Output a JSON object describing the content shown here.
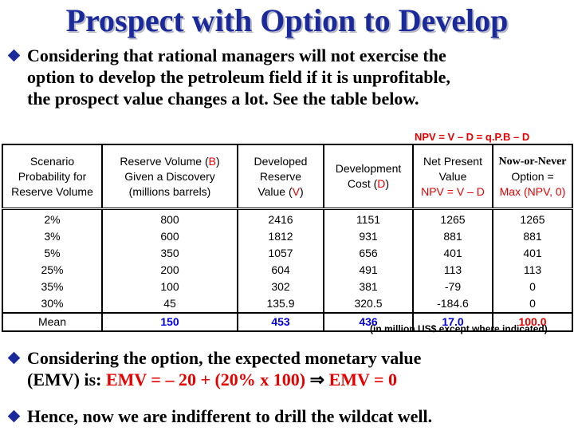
{
  "title": "Prospect with Option to Develop",
  "bullet1": {
    "lines": [
      "Considering that rational managers will not exercise the",
      "option to develop the petroleum field if it is unprofitable,",
      "the prospect value changes a lot. See the table below."
    ]
  },
  "formula_text": "NPV = V – D = q.P.B – D",
  "table": {
    "headers": [
      {
        "lines": [
          "Scenario",
          "Probability for",
          "Reserve Volume"
        ]
      },
      {
        "lines": [
          "Reserve Volume (B)",
          "Given a Discovery",
          "(millions barrels)"
        ]
      },
      {
        "lines": [
          "Developed",
          "Reserve",
          "Value (V)"
        ]
      },
      {
        "lines": [
          "Development",
          "Cost (D)"
        ]
      },
      {
        "lines": [
          "Net Present",
          "Value",
          "NPV = V – D"
        ]
      },
      {
        "lines": [
          "Now-or-Never",
          "Option =",
          "Max (NPV, 0)"
        ]
      }
    ],
    "rows": [
      [
        "2%",
        "800",
        "2416",
        "1151",
        "1265",
        "1265"
      ],
      [
        "3%",
        "600",
        "1812",
        "931",
        "881",
        "881"
      ],
      [
        "5%",
        "350",
        "1057",
        "656",
        "401",
        "401"
      ],
      [
        "25%",
        "200",
        "604",
        "491",
        "113",
        "113"
      ],
      [
        "35%",
        "100",
        "302",
        "381",
        "-79",
        "0"
      ],
      [
        "30%",
        "45",
        "135.9",
        "320.5",
        "-184.6",
        "0"
      ]
    ],
    "mean": [
      "Mean",
      "150",
      "453",
      "436",
      "17.0",
      "100.0"
    ]
  },
  "units_note": "(in million US$ except where indicated)",
  "bullet2": {
    "line1": "Considering the option, the expected monetary value",
    "line2_prefix": "(EMV) is: ",
    "line2_formula": "EMV = – 20 + (20% x 100)",
    "arrow": "⇒",
    "line2_result": "EMV = 0"
  },
  "bullet3": "Hence, now we are indifferent to drill the wildcat well.",
  "colors": {
    "title": "#1a2a9a",
    "accent_red": "#e60000",
    "mean_blue": "#0000e0"
  }
}
